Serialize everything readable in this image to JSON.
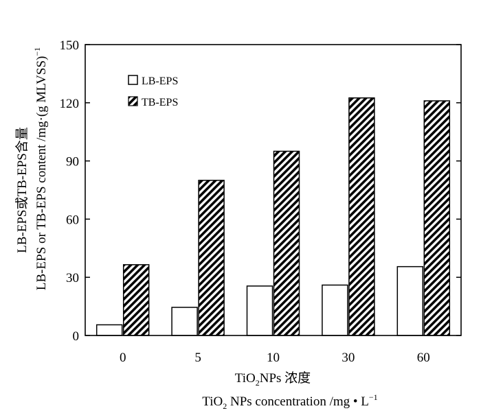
{
  "chart_data": {
    "type": "bar",
    "title": "",
    "categories": [
      "0",
      "5",
      "10",
      "30",
      "60"
    ],
    "series": [
      {
        "name": "LB-EPS",
        "values": [
          5.5,
          14.5,
          25.5,
          26,
          35.5
        ],
        "fill": "#ffffff",
        "pattern": "none"
      },
      {
        "name": "TB-EPS",
        "values": [
          36.5,
          80,
          95,
          122.5,
          121
        ],
        "fill": "#000000",
        "pattern": "diagonal-hatch"
      }
    ],
    "ylim": [
      0,
      150
    ],
    "yticks": [
      0,
      30,
      60,
      90,
      120,
      150
    ],
    "ylabel_cn": "LB-EPS或TB-EPS含量",
    "ylabel_en": "LB-EPS or TB-EPS content /mg·(g MLVSS)",
    "ylabel_en_sup": "−1",
    "xlabel_cn_pre": "TiO",
    "xlabel_cn_sub": "2",
    "xlabel_cn_post": "NPs 浓度",
    "xlabel_en_pre": "TiO",
    "xlabel_en_sub": "2",
    "xlabel_en_post": " NPs  concentration /mg • L",
    "xlabel_en_sup": "−1",
    "legend_position": "top-left",
    "grid": false
  }
}
